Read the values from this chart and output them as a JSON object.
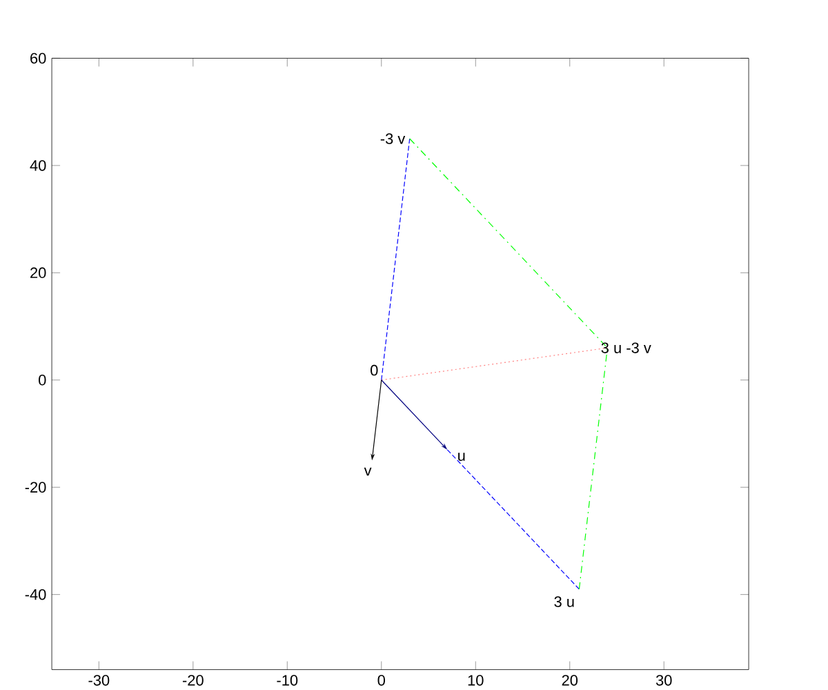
{
  "chart_data": {
    "type": "line",
    "xlim": [
      -35,
      39
    ],
    "ylim": [
      -54,
      60
    ],
    "xticks": [
      -30,
      -20,
      -10,
      0,
      10,
      20,
      30
    ],
    "yticks": [
      -40,
      -20,
      0,
      20,
      40,
      60
    ],
    "grid": false,
    "series": [
      {
        "x": [
          0,
          3
        ],
        "values": [
          0,
          45
        ],
        "color": "#0000ff",
        "line_style": "dashed"
      },
      {
        "x": [
          7,
          21
        ],
        "values": [
          -13,
          -39
        ],
        "color": "#0000ff",
        "line_style": "dashed"
      },
      {
        "x": [
          3,
          24,
          21
        ],
        "values": [
          45,
          6,
          -39
        ],
        "color": "#00ff00",
        "line_style": "dashdot"
      },
      {
        "x": [
          0,
          24
        ],
        "values": [
          0,
          6
        ],
        "color": "#ff8080",
        "line_style": "dotted"
      }
    ],
    "annotations": [
      {
        "text": "0",
        "x": 0,
        "y": 0
      },
      {
        "text": "u",
        "x": 7,
        "y": -13
      },
      "v",
      {
        "text": "3 u",
        "x": 21,
        "y": -39
      },
      {
        "text": "-3 v",
        "x": 3,
        "y": 45
      },
      {
        "text": "3 u -3 v",
        "x": 24,
        "y": 6
      }
    ]
  }
}
